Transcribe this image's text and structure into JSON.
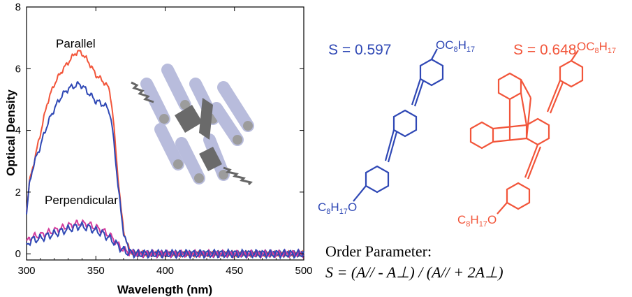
{
  "colors": {
    "blue": "#2f48b5",
    "red": "#f2553a",
    "magenta": "#d43c9c",
    "rod": "#b8bcdc",
    "rod_end": "#9c9c9c",
    "core": "#6a6a6a"
  },
  "chart_data": {
    "type": "line",
    "xlabel": "Wavelength (nm)",
    "ylabel": "Optical Density",
    "xlim": [
      300,
      500
    ],
    "ylim": [
      -0.2,
      8
    ],
    "xticks": [
      300,
      350,
      400,
      450,
      500
    ],
    "yticks": [
      0,
      2,
      4,
      6,
      8
    ],
    "grid": false,
    "annotations": [
      "Parallel",
      "Perpendicular"
    ],
    "series": [
      {
        "color": "#f2553a",
        "x": [
          300,
          302,
          304,
          306,
          310,
          315,
          320,
          325,
          330,
          335,
          338,
          340,
          345,
          350,
          355,
          358,
          360,
          362,
          364,
          366,
          368,
          370,
          372,
          374,
          376,
          380,
          390,
          400,
          410,
          420,
          430,
          440,
          450,
          460,
          470,
          480,
          490,
          500
        ],
        "y": [
          1.4,
          2.3,
          2.7,
          3.1,
          3.9,
          4.9,
          5.5,
          5.9,
          6.2,
          6.5,
          6.55,
          6.5,
          6.2,
          5.8,
          5.6,
          5.45,
          5.3,
          4.6,
          3.6,
          2.5,
          1.5,
          0.8,
          0.4,
          0.15,
          0.05,
          0.0,
          0.0,
          0.0,
          0.0,
          0.0,
          0.0,
          0.0,
          0.0,
          0.0,
          0.0,
          0.0,
          0.0,
          0.0
        ]
      },
      {
        "color": "#2f48b5",
        "x": [
          300,
          302,
          304,
          306,
          310,
          315,
          320,
          325,
          330,
          335,
          338,
          340,
          345,
          350,
          355,
          358,
          360,
          362,
          364,
          366,
          368,
          370,
          372,
          374,
          376,
          380,
          390,
          400,
          410,
          420,
          430,
          440,
          450,
          460,
          470,
          480,
          490,
          500
        ],
        "y": [
          1.3,
          2.2,
          2.7,
          3.0,
          3.5,
          4.2,
          4.7,
          5.1,
          5.35,
          5.45,
          5.5,
          5.45,
          5.2,
          4.95,
          4.85,
          4.75,
          4.6,
          4.0,
          3.2,
          2.2,
          1.4,
          0.7,
          0.35,
          0.12,
          0.05,
          0.0,
          0.0,
          0.0,
          0.0,
          0.0,
          0.0,
          0.0,
          0.0,
          0.0,
          0.0,
          0.0,
          0.0,
          0.0
        ]
      },
      {
        "color": "#d43c9c",
        "x": [
          300,
          302,
          304,
          310,
          320,
          330,
          338,
          345,
          350,
          355,
          360,
          364,
          368,
          372,
          376,
          380,
          400,
          420,
          440,
          460,
          480,
          500
        ],
        "y": [
          0.35,
          0.5,
          0.55,
          0.6,
          0.75,
          0.9,
          1.0,
          0.95,
          0.85,
          0.75,
          0.6,
          0.4,
          0.2,
          0.08,
          0.02,
          0.0,
          0.0,
          0.0,
          0.0,
          0.0,
          0.0,
          0.0
        ]
      },
      {
        "color": "#2f48b5",
        "x": [
          300,
          302,
          304,
          310,
          320,
          330,
          338,
          345,
          350,
          355,
          360,
          364,
          368,
          372,
          376,
          380,
          400,
          420,
          440,
          460,
          480,
          500
        ],
        "y": [
          0.25,
          0.4,
          0.45,
          0.5,
          0.65,
          0.8,
          0.9,
          0.85,
          0.75,
          0.65,
          0.5,
          0.35,
          0.18,
          0.06,
          0.02,
          0.0,
          0.0,
          0.0,
          0.0,
          0.0,
          0.0,
          0.0
        ]
      }
    ]
  },
  "molecules": {
    "blue": {
      "s_label": "S = 0.597",
      "sub_top": {
        "main": "OC",
        "n1": "8",
        "mid": "H",
        "n2": "17"
      },
      "sub_bottom": {
        "pre": "C",
        "n1": "8",
        "mid": "H",
        "n2": "17",
        "post": "O"
      }
    },
    "red": {
      "s_label": "S = 0.648",
      "sub_top": {
        "main": "OC",
        "n1": "8",
        "mid": "H",
        "n2": "17"
      },
      "sub_bottom": {
        "pre": "C",
        "n1": "8",
        "mid": "H",
        "n2": "17",
        "post": "O"
      }
    }
  },
  "equation": {
    "title": "Order Parameter:",
    "formula": "S = (A// - A⊥) / (A// + 2A⊥)"
  }
}
